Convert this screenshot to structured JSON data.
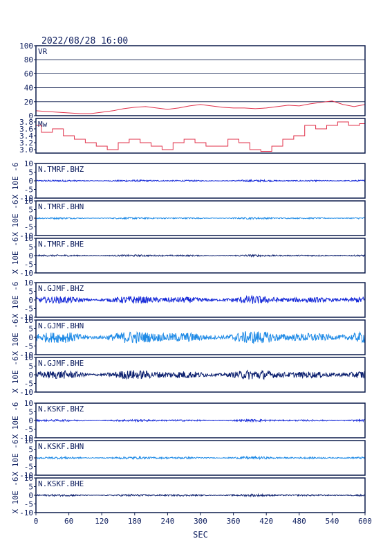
{
  "header": {
    "datetime": "2022/08/28 16:00"
  },
  "chart_data": [
    {
      "type": "line",
      "label": "VR",
      "ylim": [
        0,
        100
      ],
      "yticks": [
        "0",
        "20",
        "40",
        "60",
        "80",
        "100"
      ],
      "grid": true,
      "color": "#e0304a",
      "series": [
        {
          "x": [
            0,
            20,
            40,
            60,
            80,
            100,
            120,
            140,
            160,
            180,
            200,
            220,
            240,
            260,
            280,
            300,
            320,
            340,
            360,
            380,
            400,
            420,
            440,
            460,
            480,
            500,
            520,
            540,
            560,
            580,
            600
          ],
          "values": [
            7,
            6,
            5,
            4,
            3,
            3,
            5,
            7,
            10,
            12,
            13,
            11,
            9,
            11,
            14,
            16,
            14,
            12,
            11,
            11,
            10,
            11,
            13,
            15,
            14,
            17,
            19,
            21,
            16,
            13,
            16
          ]
        }
      ]
    },
    {
      "type": "line",
      "label": "Mw",
      "ylim": [
        2.9,
        3.9
      ],
      "yticks": [
        "3.0",
        "3.2",
        "3.4",
        "3.6",
        "3.8"
      ],
      "grid": false,
      "color": "#e0304a",
      "series": [
        {
          "x": [
            0,
            20,
            40,
            60,
            80,
            100,
            120,
            140,
            160,
            180,
            200,
            220,
            240,
            260,
            280,
            300,
            320,
            340,
            360,
            380,
            400,
            420,
            440,
            460,
            480,
            500,
            520,
            540,
            560,
            580,
            600
          ],
          "values": [
            3.7,
            3.5,
            3.6,
            3.4,
            3.3,
            3.2,
            3.1,
            3.0,
            3.2,
            3.3,
            3.2,
            3.1,
            3.0,
            3.2,
            3.3,
            3.2,
            3.1,
            3.1,
            3.3,
            3.2,
            3.0,
            2.95,
            3.1,
            3.3,
            3.4,
            3.7,
            3.6,
            3.7,
            3.8,
            3.7,
            3.75
          ]
        }
      ]
    },
    {
      "type": "line",
      "label": "N.TMRF.BHZ",
      "ylim": [
        -10,
        10
      ],
      "yticks": [
        "-10",
        "-5",
        "0",
        "5",
        "10"
      ],
      "amplitude": 0.6,
      "color": "#1428d8",
      "ylabel": "X 10E -6"
    },
    {
      "type": "line",
      "label": "N.TMRF.BHN",
      "ylim": [
        -10,
        10
      ],
      "yticks": [
        "-10",
        "-5",
        "0",
        "5",
        "10"
      ],
      "amplitude": 0.6,
      "color": "#1e8ae6",
      "ylabel": "X 10E -6"
    },
    {
      "type": "line",
      "label": "N.TMRF.BHE",
      "ylim": [
        -10,
        10
      ],
      "yticks": [
        "-10",
        "-5",
        "0",
        "5",
        "10"
      ],
      "amplitude": 0.6,
      "color": "#0a1e6e",
      "ylabel": "X 10E -6"
    },
    {
      "type": "line",
      "label": "N.GJMF.BHZ",
      "ylim": [
        -10,
        10
      ],
      "yticks": [
        "-10",
        "-5",
        "0",
        "5",
        "10"
      ],
      "amplitude": 2.5,
      "color": "#1428d8",
      "ylabel": "X 10E -6"
    },
    {
      "type": "line",
      "label": "N.GJMF.BHN",
      "ylim": [
        -10,
        10
      ],
      "yticks": [
        "-10",
        "-5",
        "0",
        "5",
        "10"
      ],
      "amplitude": 4.0,
      "color": "#1e8ae6",
      "ylabel": "X 10E -6"
    },
    {
      "type": "line",
      "label": "N.GJMF.BHE",
      "ylim": [
        -10,
        10
      ],
      "yticks": [
        "-10",
        "-5",
        "0",
        "5",
        "10"
      ],
      "amplitude": 3.0,
      "color": "#0a1e6e",
      "ylabel": "X 10E -6"
    },
    {
      "type": "line",
      "label": "N.KSKF.BHZ",
      "ylim": [
        -10,
        10
      ],
      "yticks": [
        "-10",
        "-5",
        "0",
        "5",
        "10"
      ],
      "amplitude": 0.7,
      "color": "#1428d8",
      "ylabel": "X 10E -6"
    },
    {
      "type": "line",
      "label": "N.KSKF.BHN",
      "ylim": [
        -10,
        10
      ],
      "yticks": [
        "-10",
        "-5",
        "0",
        "5",
        "10"
      ],
      "amplitude": 0.8,
      "color": "#1e8ae6",
      "ylabel": "X 10E -6"
    },
    {
      "type": "line",
      "label": "N.KSKF.BHE",
      "ylim": [
        -10,
        10
      ],
      "yticks": [
        "-10",
        "-5",
        "0",
        "5",
        "10"
      ],
      "amplitude": 0.7,
      "color": "#0a1e6e",
      "ylabel": "X 10E -6"
    }
  ],
  "x_axis": {
    "xlim": [
      0,
      600
    ],
    "ticks": [
      0,
      60,
      120,
      180,
      240,
      300,
      360,
      420,
      480,
      540,
      600
    ],
    "label": "SEC"
  }
}
